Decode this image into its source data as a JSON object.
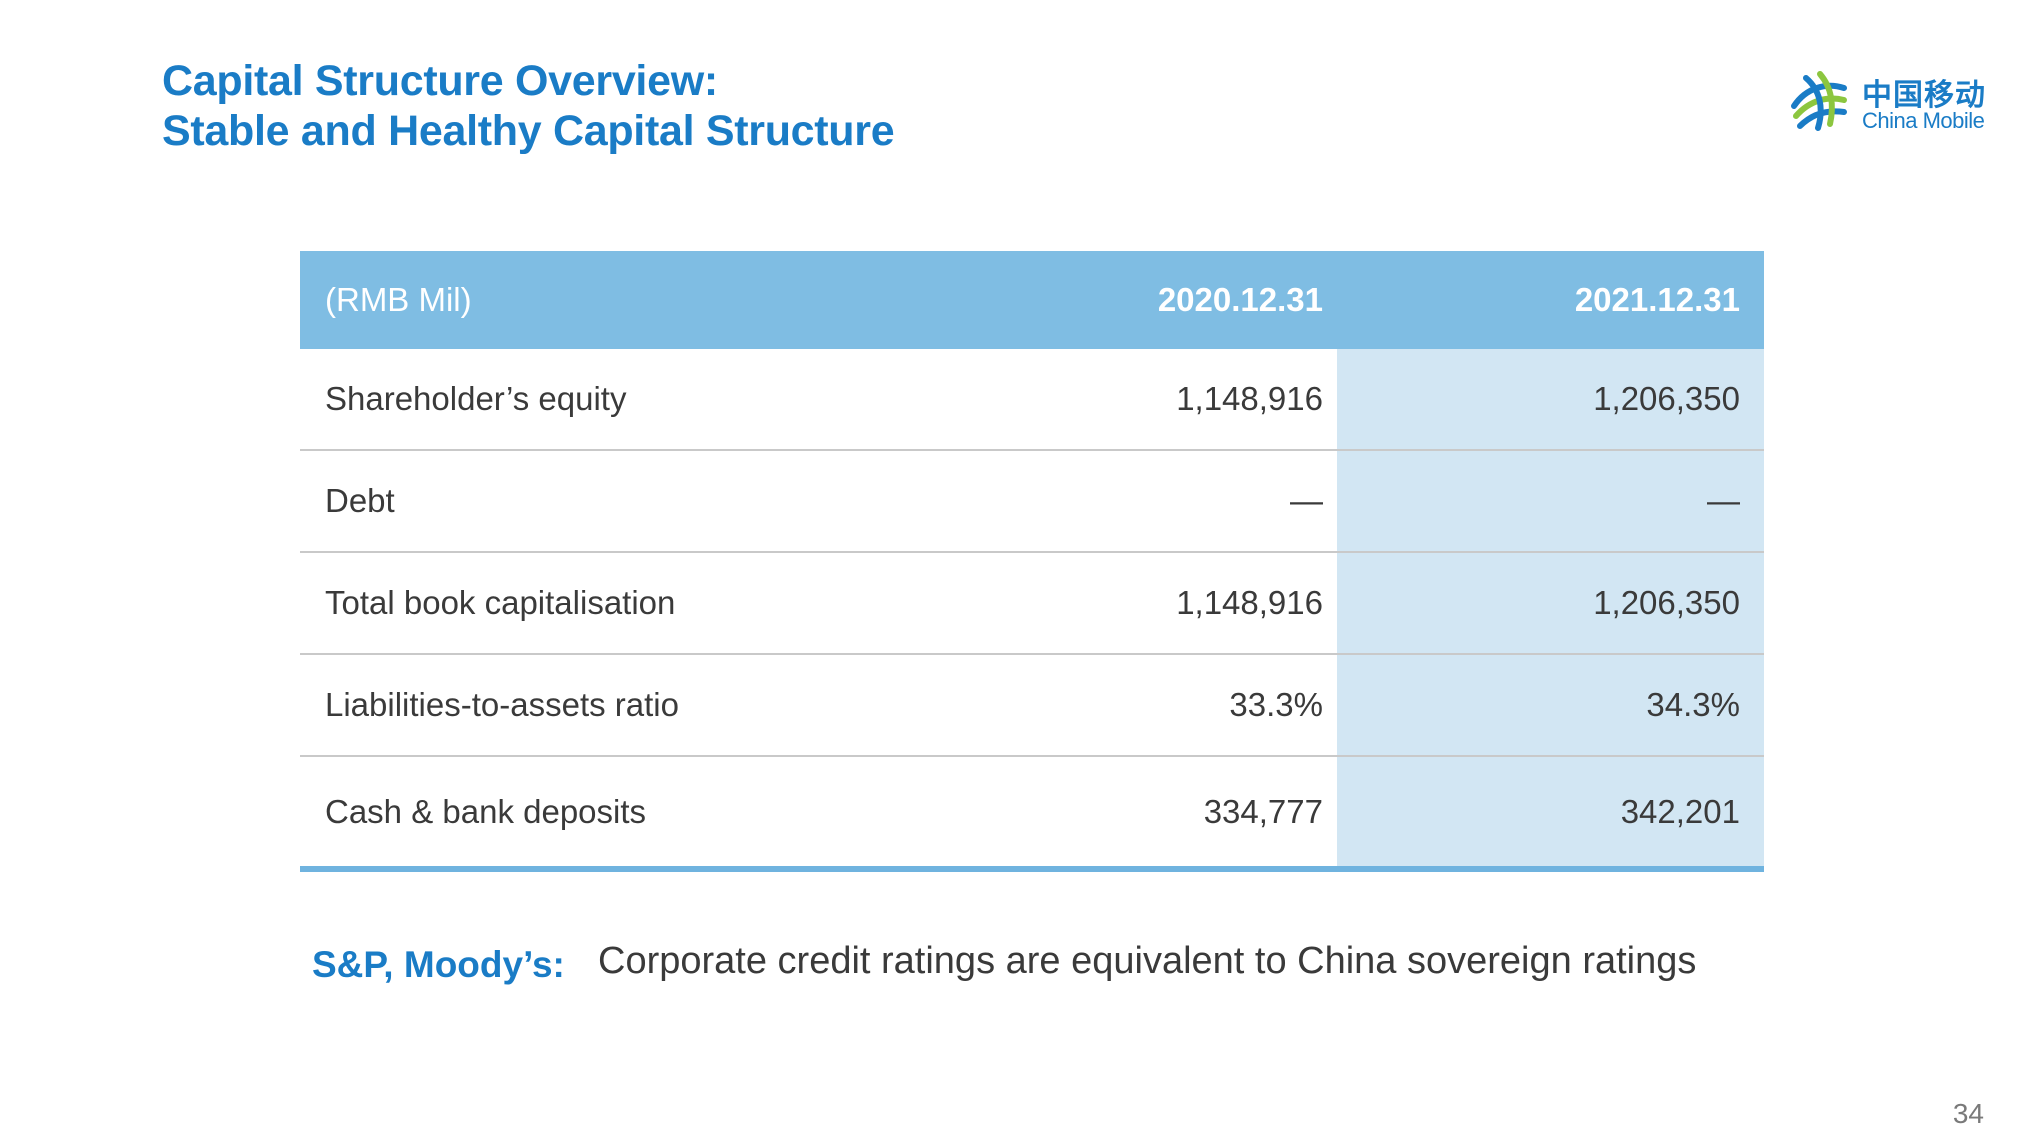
{
  "header": {
    "title_line1": "Capital Structure Overview:",
    "title_line2": "Stable and Healthy Capital Structure"
  },
  "logo": {
    "chinese": "中国移动",
    "english": "China Mobile",
    "icon": "china-mobile-logo-icon",
    "colors": {
      "blue": "#1a7cc6",
      "green": "#8cc63f"
    }
  },
  "table": {
    "columns": [
      "(RMB Mil)",
      "2020.12.31",
      "2021.12.31"
    ],
    "rows": [
      {
        "label": "Shareholder’s equity",
        "v2020": "1,148,916",
        "v2021": "1,206,350"
      },
      {
        "label": "Debt",
        "v2020": "—",
        "v2021": "—"
      },
      {
        "label": "Total book capitalisation",
        "v2020": "1,148,916",
        "v2021": "1,206,350"
      },
      {
        "label": "Liabilities-to-assets ratio",
        "v2020": "33.3%",
        "v2021": "34.3%"
      },
      {
        "label": "Cash & bank deposits",
        "v2020": "334,777",
        "v2021": "342,201"
      }
    ],
    "colors": {
      "header": "#7fbde3",
      "highlight_column": "#d2e6f3",
      "bottom_rule": "#6fb3df"
    }
  },
  "note": {
    "key": "S&P, Moody’s:",
    "text": "Corporate credit ratings are equivalent to China sovereign ratings"
  },
  "page_number": "34"
}
